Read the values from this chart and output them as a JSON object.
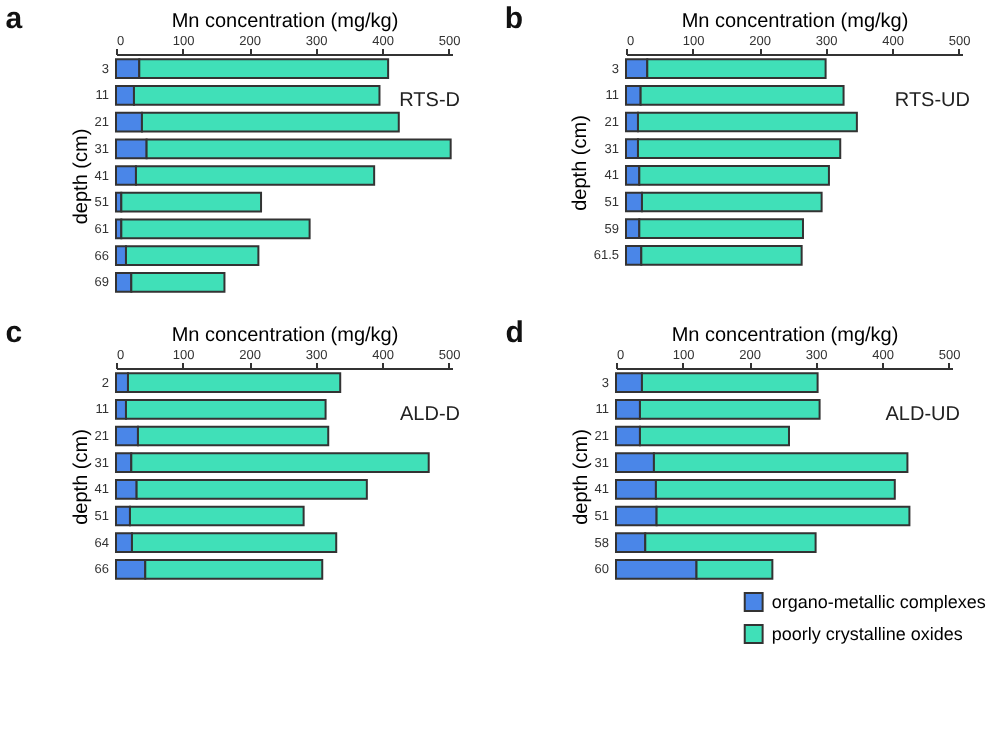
{
  "chart_data": [
    {
      "type": "bar",
      "orientation": "horizontal",
      "stacked": true,
      "title": "a",
      "xlabel": "Mn concentration (mg/kg)",
      "ylabel": "depth (cm)",
      "annotations": [
        "RTS-D"
      ],
      "categories": [
        "3",
        "11",
        "21",
        "31",
        "41",
        "51",
        "61",
        "66",
        "69"
      ],
      "xlim": [
        0,
        505
      ],
      "xticks": [
        0,
        100,
        200,
        300,
        400,
        500
      ],
      "grid": false,
      "legend": false,
      "series": [
        {
          "color": "#4a86e8",
          "values": [
            35,
            27,
            39,
            46,
            30,
            8,
            8,
            15,
            23
          ]
        },
        {
          "color": "#40e0b8",
          "values": [
            374,
            369,
            386,
            457,
            358,
            210,
            283,
            199,
            140
          ]
        }
      ]
    },
    {
      "type": "bar",
      "orientation": "horizontal",
      "stacked": true,
      "title": "b",
      "xlabel": "Mn concentration (mg/kg)",
      "ylabel": "depth (cm)",
      "annotations": [
        "RTS-UD"
      ],
      "categories": [
        "3",
        "11",
        "21",
        "31",
        "41",
        "51",
        "59",
        "61.5"
      ],
      "xlim": [
        0,
        505
      ],
      "xticks": [
        0,
        100,
        200,
        300,
        400,
        500
      ],
      "grid": false,
      "legend": false,
      "series": [
        {
          "color": "#4a86e8",
          "values": [
            32,
            22,
            18,
            18,
            20,
            24,
            20,
            23
          ]
        },
        {
          "color": "#40e0b8",
          "values": [
            268,
            305,
            329,
            304,
            285,
            270,
            246,
            241
          ]
        }
      ]
    },
    {
      "type": "bar",
      "orientation": "horizontal",
      "stacked": true,
      "title": "c",
      "xlabel": "Mn concentration (mg/kg)",
      "ylabel": "depth (cm)",
      "annotations": [
        "ALD-D"
      ],
      "categories": [
        "2",
        "11",
        "21",
        "31",
        "41",
        "51",
        "64",
        "66"
      ],
      "xlim": [
        0,
        505
      ],
      "xticks": [
        0,
        100,
        200,
        300,
        400,
        500
      ],
      "grid": false,
      "legend": false,
      "series": [
        {
          "color": "#4a86e8",
          "values": [
            18,
            15,
            33,
            23,
            31,
            21,
            24,
            44
          ]
        },
        {
          "color": "#40e0b8",
          "values": [
            319,
            300,
            286,
            447,
            346,
            261,
            307,
            266
          ]
        }
      ]
    },
    {
      "type": "bar",
      "orientation": "horizontal",
      "stacked": true,
      "title": "d",
      "xlabel": "Mn concentration (mg/kg)",
      "ylabel": "depth (cm)",
      "annotations": [
        "ALD-UD"
      ],
      "categories": [
        "3",
        "11",
        "21",
        "31",
        "41",
        "51",
        "58",
        "60"
      ],
      "xlim": [
        0,
        505
      ],
      "xticks": [
        0,
        100,
        200,
        300,
        400,
        500
      ],
      "grid": false,
      "legend": "bottom right",
      "series": [
        {
          "name": "organo-metallic complexes",
          "color": "#4a86e8",
          "values": [
            39,
            36,
            36,
            57,
            60,
            61,
            44,
            121
          ]
        },
        {
          "name": "poorly crystalline oxides",
          "color": "#40e0b8",
          "values": [
            264,
            270,
            224,
            381,
            359,
            380,
            256,
            114
          ]
        }
      ]
    }
  ]
}
